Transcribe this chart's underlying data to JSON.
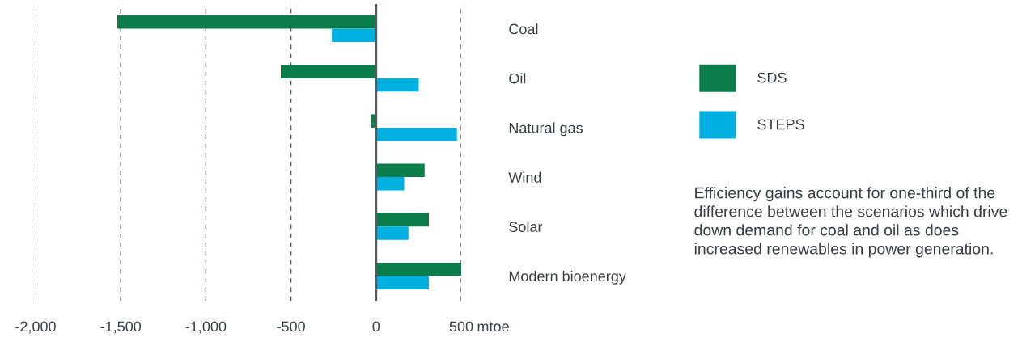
{
  "chart_data": {
    "type": "bar",
    "orientation": "horizontal",
    "categories": [
      "Coal",
      "Oil",
      "Natural gas",
      "Wind",
      "Solar",
      "Modern bioenergy"
    ],
    "series": [
      {
        "name": "SDS",
        "color": "#0a7d4b",
        "values": [
          -1520,
          -560,
          -30,
          285,
          310,
          500
        ]
      },
      {
        "name": "STEPS",
        "color": "#00b0e0",
        "values": [
          -260,
          250,
          475,
          165,
          190,
          310
        ]
      }
    ],
    "xlim": [
      -2000,
      500
    ],
    "xticks": [
      {
        "value": -2000,
        "label": "-2,000"
      },
      {
        "value": -1500,
        "label": "-1,500"
      },
      {
        "value": -1000,
        "label": "-1,000"
      },
      -500,
      0,
      500
    ],
    "xlabel": "mtoe",
    "grid": "x",
    "legend": "right",
    "ref_lines": [
      {
        "axis": "x",
        "value": 0,
        "color": "#555b63"
      }
    ],
    "annotations": [
      "Efficiency gains account for one-third of the difference between the scenarios which drive down demand for coal and oil as does increased renewables in power generation."
    ]
  }
}
